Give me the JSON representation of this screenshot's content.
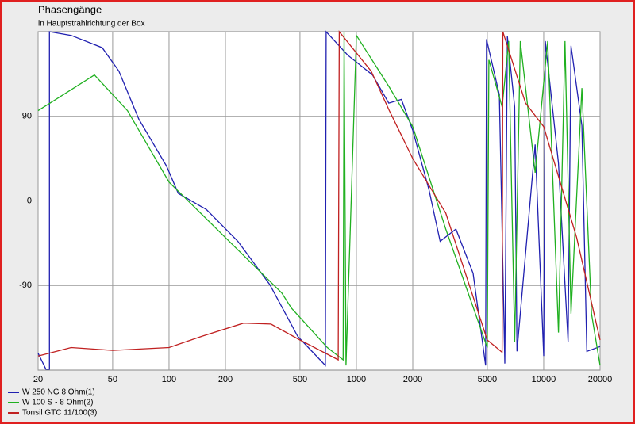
{
  "chart_data": {
    "type": "line",
    "title": "Phasengänge",
    "subtitle": "in Hauptstrahlrichtung der Box",
    "xscale": "log",
    "xlim": [
      20,
      20000
    ],
    "ylim": [
      -180,
      180
    ],
    "xticks": [
      20,
      50,
      100,
      200,
      500,
      1000,
      2000,
      5000,
      10000,
      20000
    ],
    "yticks": [
      -90,
      0,
      90
    ],
    "grid": true,
    "legend": "bottom-left",
    "series": [
      {
        "name": "W 250 NG 8 Ohm(1)",
        "color": "#2020b0",
        "x": [
          20,
          22,
          23,
          23,
          30,
          44,
          54,
          69,
          97,
          112,
          158,
          233,
          345,
          486,
          683,
          690,
          900,
          1220,
          1490,
          1740,
          2000,
          2440,
          2800,
          3400,
          4200,
          4900,
          4950,
          5800,
          6200,
          6400,
          7000,
          7200,
          9000,
          10000,
          10200,
          12000,
          13500,
          14000,
          16000,
          17000,
          20000
        ],
        "values": [
          -162,
          -179,
          -179,
          180,
          176,
          163,
          138,
          87,
          37,
          8,
          -9,
          -43,
          -89,
          -144,
          -175,
          180,
          155,
          134,
          104,
          108,
          75,
          12,
          -43,
          -30,
          -77,
          -175,
          172,
          113,
          -173,
          175,
          100,
          -160,
          60,
          -165,
          170,
          40,
          -150,
          165,
          80,
          -160,
          -155
        ]
      },
      {
        "name": "W 100 S - 8 Ohm(2)",
        "color": "#20b020",
        "x": [
          20,
          40,
          60,
          100,
          200,
          400,
          450,
          700,
          850,
          860,
          880,
          1000,
          1500,
          2000,
          3000,
          5000,
          5100,
          6000,
          6500,
          7000,
          7500,
          9000,
          10500,
          12000,
          13000,
          14000,
          16000,
          18000,
          20000
        ],
        "values": [
          96,
          134,
          96,
          20,
          -39,
          -98,
          -114,
          -156,
          -169,
          180,
          -175,
          176,
          121,
          79,
          -30,
          -156,
          150,
          100,
          170,
          -150,
          170,
          30,
          170,
          -140,
          170,
          -120,
          120,
          -120,
          -175
        ]
      },
      {
        "name": "Tonsil GTC 11/100(3)",
        "color": "#c02020",
        "x": [
          20,
          30,
          50,
          100,
          150,
          250,
          350,
          500,
          800,
          810,
          1200,
          1500,
          2000,
          3000,
          4000,
          5000,
          6000,
          6050,
          8000,
          10000,
          15000,
          20000
        ],
        "values": [
          -165,
          -156,
          -159,
          -156,
          -144,
          -130,
          -131,
          -148,
          -169,
          180,
          138,
          96,
          45,
          -13,
          -89,
          -148,
          -161,
          180,
          104,
          79,
          -39,
          -148
        ]
      }
    ]
  }
}
